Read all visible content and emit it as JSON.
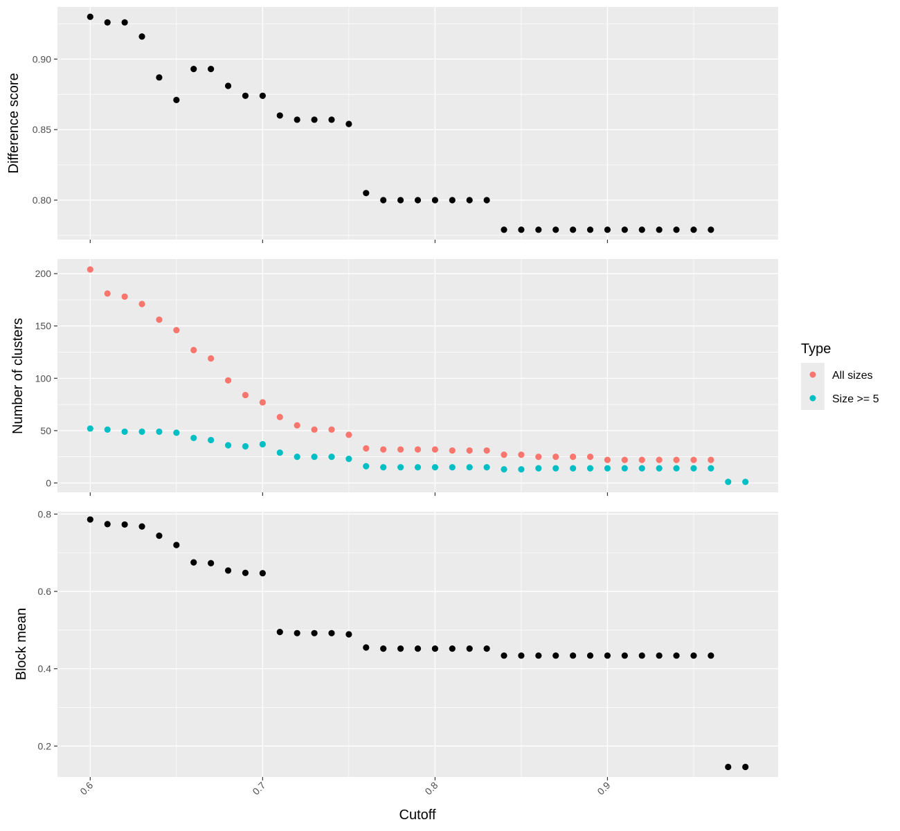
{
  "chart_data": {
    "type": "scatter",
    "xlabel": "Cutoff",
    "xlim": [
      0.581,
      0.999
    ],
    "xticks": [
      0.6,
      0.7,
      0.8,
      0.9
    ],
    "xtick_labels": [
      "0.6",
      "0.7",
      "0.8",
      "0.9"
    ],
    "grid": true,
    "legend_position": "right",
    "legend": {
      "title": "Type",
      "entries": [
        {
          "label": "All sizes",
          "color": "#F8766D"
        },
        {
          "label": "Size >= 5",
          "color": "#00BFC4"
        }
      ]
    },
    "panels": [
      {
        "ylabel": "Difference score",
        "ylim": [
          0.772,
          0.937
        ],
        "yticks": [
          0.8,
          0.85,
          0.9
        ],
        "ytick_labels": [
          "0.80",
          "0.85",
          "0.90"
        ],
        "series": [
          {
            "color": "#000000",
            "points": [
              [
                0.6,
                0.93
              ],
              [
                0.61,
                0.926
              ],
              [
                0.62,
                0.926
              ],
              [
                0.63,
                0.916
              ],
              [
                0.64,
                0.887
              ],
              [
                0.65,
                0.871
              ],
              [
                0.66,
                0.893
              ],
              [
                0.67,
                0.893
              ],
              [
                0.68,
                0.881
              ],
              [
                0.69,
                0.874
              ],
              [
                0.7,
                0.874
              ],
              [
                0.71,
                0.86
              ],
              [
                0.72,
                0.857
              ],
              [
                0.73,
                0.857
              ],
              [
                0.74,
                0.857
              ],
              [
                0.75,
                0.854
              ],
              [
                0.76,
                0.805
              ],
              [
                0.77,
                0.8
              ],
              [
                0.78,
                0.8
              ],
              [
                0.79,
                0.8
              ],
              [
                0.8,
                0.8
              ],
              [
                0.81,
                0.8
              ],
              [
                0.82,
                0.8
              ],
              [
                0.83,
                0.8
              ],
              [
                0.84,
                0.779
              ],
              [
                0.85,
                0.779
              ],
              [
                0.86,
                0.779
              ],
              [
                0.87,
                0.779
              ],
              [
                0.88,
                0.779
              ],
              [
                0.89,
                0.779
              ],
              [
                0.9,
                0.779
              ],
              [
                0.91,
                0.779
              ],
              [
                0.92,
                0.779
              ],
              [
                0.93,
                0.779
              ],
              [
                0.94,
                0.779
              ],
              [
                0.95,
                0.779
              ],
              [
                0.96,
                0.779
              ]
            ]
          }
        ]
      },
      {
        "ylabel": "Number of clusters",
        "ylim": [
          -9,
          214
        ],
        "yticks": [
          0,
          50,
          100,
          150,
          200
        ],
        "ytick_labels": [
          "0",
          "50",
          "100",
          "150",
          "200"
        ],
        "series": [
          {
            "name": "All sizes",
            "color": "#F8766D",
            "points": [
              [
                0.6,
                204
              ],
              [
                0.61,
                181
              ],
              [
                0.62,
                178
              ],
              [
                0.63,
                171
              ],
              [
                0.64,
                156
              ],
              [
                0.65,
                146
              ],
              [
                0.66,
                127
              ],
              [
                0.67,
                119
              ],
              [
                0.68,
                98
              ],
              [
                0.69,
                84
              ],
              [
                0.7,
                77
              ],
              [
                0.71,
                63
              ],
              [
                0.72,
                55
              ],
              [
                0.73,
                51
              ],
              [
                0.74,
                51
              ],
              [
                0.75,
                46
              ],
              [
                0.76,
                33
              ],
              [
                0.77,
                32
              ],
              [
                0.78,
                32
              ],
              [
                0.79,
                32
              ],
              [
                0.8,
                32
              ],
              [
                0.81,
                31
              ],
              [
                0.82,
                31
              ],
              [
                0.83,
                31
              ],
              [
                0.84,
                27
              ],
              [
                0.85,
                27
              ],
              [
                0.86,
                25
              ],
              [
                0.87,
                25
              ],
              [
                0.88,
                25
              ],
              [
                0.89,
                25
              ],
              [
                0.9,
                22
              ],
              [
                0.91,
                22
              ],
              [
                0.92,
                22
              ],
              [
                0.93,
                22
              ],
              [
                0.94,
                22
              ],
              [
                0.95,
                22
              ],
              [
                0.96,
                22
              ]
            ]
          },
          {
            "name": "Size >= 5",
            "color": "#00BFC4",
            "points": [
              [
                0.6,
                52
              ],
              [
                0.61,
                51
              ],
              [
                0.62,
                49
              ],
              [
                0.63,
                49
              ],
              [
                0.64,
                49
              ],
              [
                0.65,
                48
              ],
              [
                0.66,
                43
              ],
              [
                0.67,
                41
              ],
              [
                0.68,
                36
              ],
              [
                0.69,
                35
              ],
              [
                0.7,
                37
              ],
              [
                0.71,
                29
              ],
              [
                0.72,
                25
              ],
              [
                0.73,
                25
              ],
              [
                0.74,
                25
              ],
              [
                0.75,
                23
              ],
              [
                0.76,
                16
              ],
              [
                0.77,
                15
              ],
              [
                0.78,
                15
              ],
              [
                0.79,
                15
              ],
              [
                0.8,
                15
              ],
              [
                0.81,
                15
              ],
              [
                0.82,
                15
              ],
              [
                0.83,
                15
              ],
              [
                0.84,
                13
              ],
              [
                0.85,
                13
              ],
              [
                0.86,
                14
              ],
              [
                0.87,
                14
              ],
              [
                0.88,
                14
              ],
              [
                0.89,
                14
              ],
              [
                0.9,
                14
              ],
              [
                0.91,
                14
              ],
              [
                0.92,
                14
              ],
              [
                0.93,
                14
              ],
              [
                0.94,
                14
              ],
              [
                0.95,
                14
              ],
              [
                0.96,
                14
              ],
              [
                0.97,
                1
              ],
              [
                0.98,
                1
              ]
            ]
          }
        ]
      },
      {
        "ylabel": "Block mean",
        "ylim": [
          0.12,
          0.806
        ],
        "yticks": [
          0.2,
          0.4,
          0.6,
          0.8
        ],
        "ytick_labels": [
          "0.2",
          "0.4",
          "0.6",
          "0.8"
        ],
        "series": [
          {
            "color": "#000000",
            "points": [
              [
                0.6,
                0.786
              ],
              [
                0.61,
                0.774
              ],
              [
                0.62,
                0.773
              ],
              [
                0.63,
                0.768
              ],
              [
                0.64,
                0.744
              ],
              [
                0.65,
                0.72
              ],
              [
                0.66,
                0.675
              ],
              [
                0.67,
                0.673
              ],
              [
                0.68,
                0.654
              ],
              [
                0.69,
                0.648
              ],
              [
                0.7,
                0.647
              ],
              [
                0.71,
                0.495
              ],
              [
                0.72,
                0.492
              ],
              [
                0.73,
                0.492
              ],
              [
                0.74,
                0.492
              ],
              [
                0.75,
                0.489
              ],
              [
                0.76,
                0.455
              ],
              [
                0.77,
                0.452
              ],
              [
                0.78,
                0.452
              ],
              [
                0.79,
                0.452
              ],
              [
                0.8,
                0.452
              ],
              [
                0.81,
                0.452
              ],
              [
                0.82,
                0.452
              ],
              [
                0.83,
                0.452
              ],
              [
                0.84,
                0.434
              ],
              [
                0.85,
                0.434
              ],
              [
                0.86,
                0.434
              ],
              [
                0.87,
                0.434
              ],
              [
                0.88,
                0.434
              ],
              [
                0.89,
                0.434
              ],
              [
                0.9,
                0.434
              ],
              [
                0.91,
                0.434
              ],
              [
                0.92,
                0.434
              ],
              [
                0.93,
                0.434
              ],
              [
                0.94,
                0.434
              ],
              [
                0.95,
                0.434
              ],
              [
                0.96,
                0.434
              ],
              [
                0.97,
                0.146
              ],
              [
                0.98,
                0.146
              ]
            ]
          }
        ]
      }
    ]
  }
}
